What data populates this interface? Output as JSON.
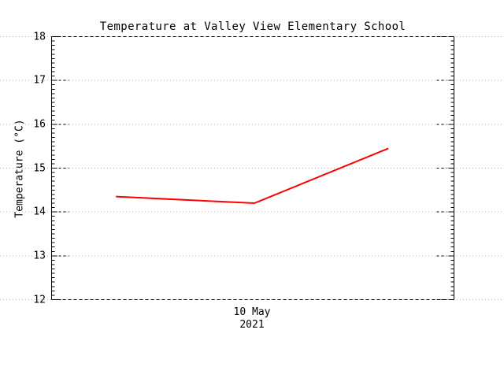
{
  "chart_data": {
    "type": "line",
    "title": "Temperature at Valley View Elementary School",
    "ylabel": "Temperature (°C)",
    "xtick_label_lines": [
      "10 May",
      "2021"
    ],
    "ylim": [
      12,
      18
    ],
    "yticks": [
      12,
      13,
      14,
      15,
      16,
      17,
      18
    ],
    "y_minor_per_major": 10,
    "grid": {
      "orientation": "horizontal",
      "style": "dotted",
      "color": "#b8b8b8",
      "full_image_width": true
    },
    "axes": {
      "left": "solid",
      "right": "solid",
      "top": "dashed",
      "bottom": "dashed",
      "tick_direction": "inward"
    },
    "legend": "none",
    "x_tick": {
      "x_frac": 0.5
    },
    "series": [
      {
        "name": "temperature",
        "color": "#ff0000",
        "points": [
          {
            "x_frac": 0.16,
            "temp_c": 14.35
          },
          {
            "x_frac": 0.504,
            "temp_c": 14.2
          },
          {
            "x_frac": 0.837,
            "temp_c": 15.45
          }
        ]
      }
    ]
  }
}
